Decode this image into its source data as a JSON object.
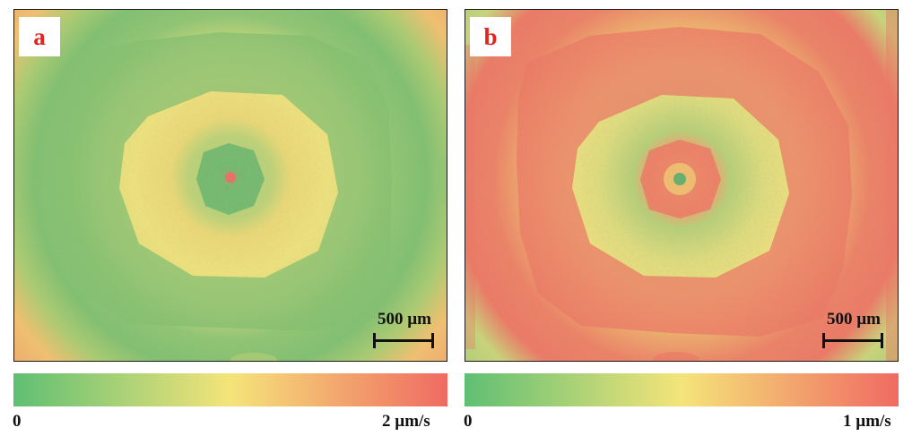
{
  "panels": [
    {
      "label": "a",
      "scale_bar": "500 µm",
      "colorbar": {
        "min": "0",
        "max": "2 µm/s"
      },
      "rings": [
        "green",
        "yellow",
        "orange",
        "green",
        "yellow",
        "green",
        "red"
      ]
    },
    {
      "label": "b",
      "scale_bar": "500 µm",
      "colorbar": {
        "min": "0",
        "max": "1 µm/s"
      },
      "rings": [
        "yellow",
        "green",
        "red",
        "yellow",
        "green",
        "orange",
        "green"
      ]
    }
  ],
  "colormap": [
    "#5fbf73",
    "#f5e47a",
    "#f06a62"
  ]
}
